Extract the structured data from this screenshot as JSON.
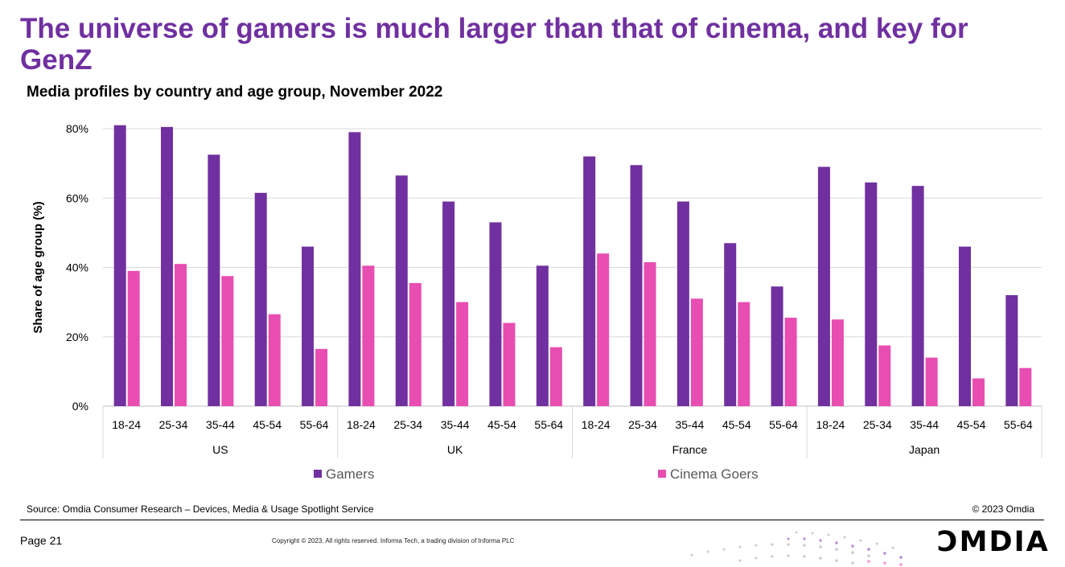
{
  "header": {
    "title": "The universe of gamers is much larger than that of cinema, and key for GenZ",
    "subtitle": "Media profiles by country and age group, November 2022"
  },
  "footer": {
    "source": "Source: Omdia Consumer Research – Devices, Media & Usage Spotlight Service",
    "copyright_short": "© 2023 Omdia",
    "page": "Page 21",
    "legal": "Copyright © 2023. All rights reserved. Informa Tech, a trading division of Informa PLC",
    "logo_text": "OMDIA"
  },
  "colors": {
    "gamers": "#7030a0",
    "cinema": "#e84db1",
    "title": "#7030a0"
  },
  "chart_data": {
    "type": "bar",
    "ylabel": "Share of age group (%)",
    "ylim": [
      0,
      80
    ],
    "yticks": [
      "0%",
      "20%",
      "40%",
      "60%",
      "80%"
    ],
    "grid": true,
    "legend_position": "bottom",
    "groups": [
      "US",
      "UK",
      "France",
      "Japan"
    ],
    "categories": [
      "18-24",
      "25-34",
      "35-44",
      "45-54",
      "55-64"
    ],
    "series": [
      {
        "name": "Gamers",
        "values": [
          [
            81,
            80.5,
            72.5,
            61.5,
            46
          ],
          [
            79,
            66.5,
            59,
            53,
            40.5
          ],
          [
            72,
            69.5,
            59,
            47,
            34.5
          ],
          [
            69,
            64.5,
            63.5,
            46,
            32
          ]
        ]
      },
      {
        "name": "Cinema Goers",
        "values": [
          [
            39,
            41,
            37.5,
            26.5,
            16.5
          ],
          [
            40.5,
            35.5,
            30,
            24,
            17
          ],
          [
            44,
            41.5,
            31,
            30,
            25.5
          ],
          [
            25,
            17.5,
            14,
            8,
            11
          ]
        ]
      }
    ]
  }
}
